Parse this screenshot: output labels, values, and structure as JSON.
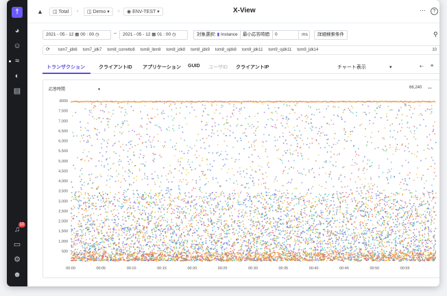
{
  "app": {
    "title": "X-View"
  },
  "breadcrumb": {
    "level1": "Total",
    "level2": "Demo",
    "level3": "ENV-TEST"
  },
  "toolbar": {
    "start_date": "2021 - 05 - 12",
    "start_time": "00 : 00",
    "end_date": "2021 - 05 - 12",
    "end_time": "01 : 00",
    "target_label": "対象選択:",
    "target_value": "Instance",
    "min_response_label": "最小応答時間",
    "min_response_value": "0",
    "min_response_unit": "ms",
    "detail_search_label": "詳細検索条件"
  },
  "instances": {
    "tags": [
      "tom7_jdk6",
      "tom7_jdk7",
      "tom8_corretto8",
      "tom8_ibm8",
      "tom8_jdk8",
      "tom8_jdk9",
      "tom8_ojdk8",
      "tom9_jdk11",
      "tom9_ojdk11",
      "tom9_jdk14"
    ],
    "count": "10"
  },
  "tabs": [
    {
      "label": "トランザクション"
    },
    {
      "label": "クライアントID"
    },
    {
      "label": "アプリケーション"
    },
    {
      "label": "GUID"
    },
    {
      "label": "ユーザID"
    },
    {
      "label": "クライアントIP"
    }
  ],
  "chart_view_label": "チャート表示",
  "panel": {
    "metric_select": "応答時間",
    "total_count": "66,240"
  },
  "colors": {
    "accent": "#5b4bdb",
    "sidebar": "#1b1c20"
  },
  "chart_data": {
    "type": "scatter",
    "ylim": [
      0,
      8000
    ],
    "xlim": [
      "00:00",
      "01:00"
    ],
    "y_ticks": [
      "500",
      "1,000",
      "1,500",
      "2,000",
      "2,500",
      "3,000",
      "3,500",
      "4,000",
      "4,500",
      "5,000",
      "5,500",
      "6,000",
      "6,500",
      "7,000",
      "7,500",
      "8000"
    ],
    "x_ticks": [
      "00:00",
      "00:05",
      "00:10",
      "00:15",
      "00:20",
      "00:25",
      "00:30",
      "00:35",
      "00:40",
      "00:45",
      "00:50",
      "00:55"
    ],
    "series_colors": [
      "#5a6fd6",
      "#4a8fe0",
      "#7cc36b",
      "#f0a33a",
      "#e86a5a",
      "#a56ad6",
      "#4cc3c0",
      "#e8c94a"
    ],
    "point_count": 66240,
    "density_note": "dense band below ~3500 ms, sparse above, capped band at 8000"
  }
}
